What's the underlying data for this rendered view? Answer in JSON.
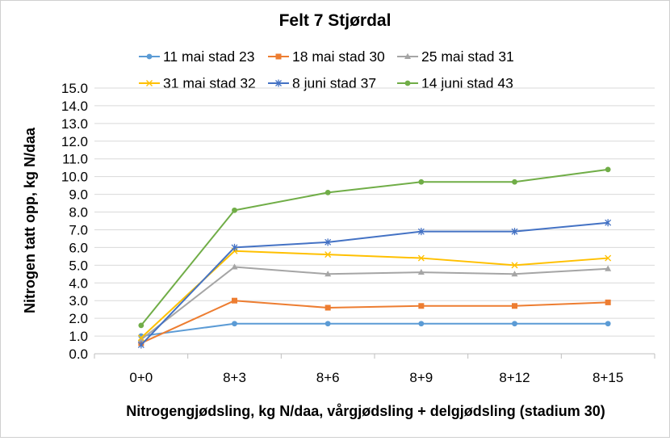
{
  "chart_data": {
    "type": "line",
    "title": "Felt 7 Stjørdal",
    "xlabel": "Nitrogengjødsling, kg N/daa, vårgjødsling + delgjødsling (stadium 30)",
    "ylabel": "Nitrogen tatt opp, kg N/daa",
    "categories": [
      "0+0",
      "8+3",
      "8+6",
      "8+9",
      "8+12",
      "8+15"
    ],
    "ylim": [
      0,
      15
    ],
    "yticks": [
      "0.0",
      "1.0",
      "2.0",
      "3.0",
      "4.0",
      "5.0",
      "6.0",
      "7.0",
      "8.0",
      "9.0",
      "10.0",
      "11.0",
      "12.0",
      "13.0",
      "14.0",
      "15.0"
    ],
    "grid": true,
    "legend_position": "top",
    "series": [
      {
        "name": "11 mai stad 23",
        "color": "#5B9BD5",
        "marker": "circle",
        "values": [
          1.0,
          1.7,
          1.7,
          1.7,
          1.7,
          1.7
        ]
      },
      {
        "name": "18 mai stad 30",
        "color": "#ED7D31",
        "marker": "square",
        "values": [
          0.6,
          3.0,
          2.6,
          2.7,
          2.7,
          2.9
        ]
      },
      {
        "name": "25 mai stad 31",
        "color": "#A5A5A5",
        "marker": "triangle",
        "values": [
          0.8,
          4.9,
          4.5,
          4.6,
          4.5,
          4.8
        ]
      },
      {
        "name": "31 mai stad 32",
        "color": "#FFC000",
        "marker": "x",
        "values": [
          0.9,
          5.8,
          5.6,
          5.4,
          5.0,
          5.4
        ]
      },
      {
        "name": "8 juni stad 37",
        "color": "#4472C4",
        "marker": "star",
        "values": [
          0.5,
          6.0,
          6.3,
          6.9,
          6.9,
          7.4
        ]
      },
      {
        "name": "14 juni stad 43",
        "color": "#70AD47",
        "marker": "circle",
        "values": [
          1.6,
          8.1,
          9.1,
          9.7,
          9.7,
          10.4
        ]
      }
    ]
  }
}
